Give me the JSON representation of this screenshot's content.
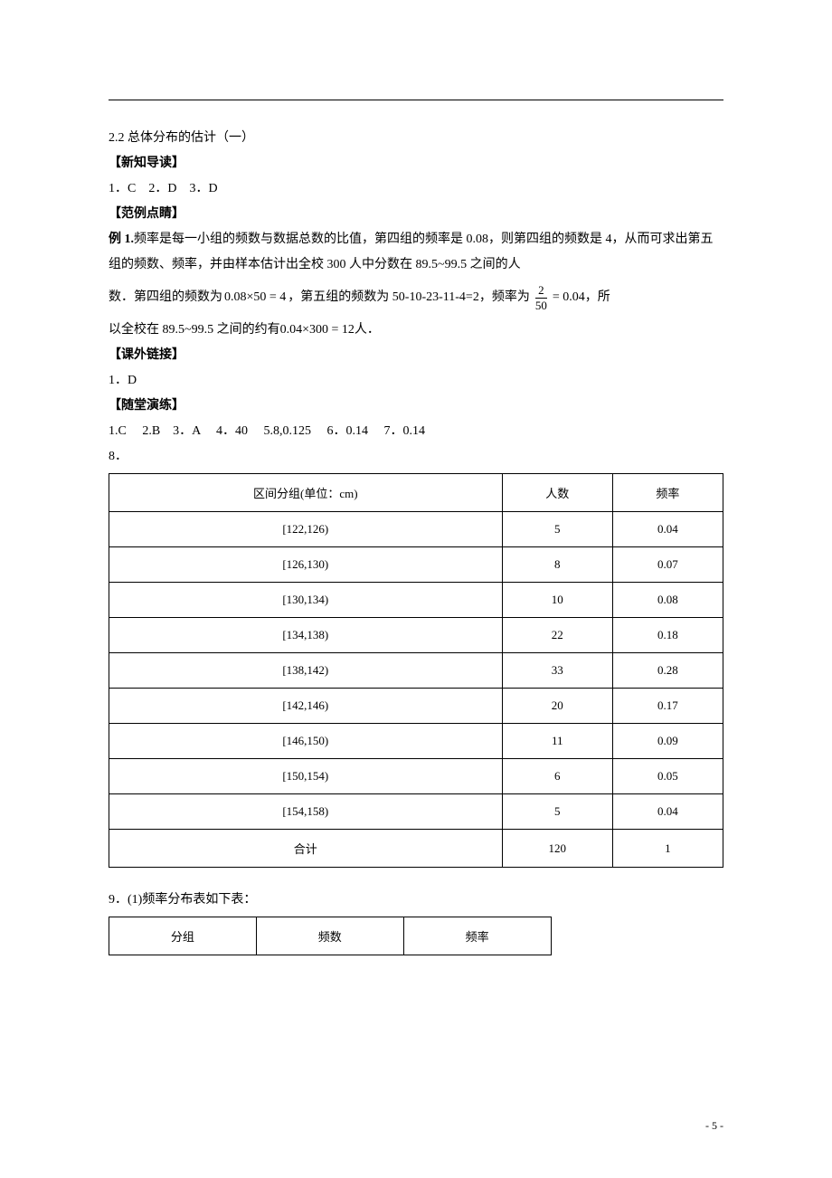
{
  "colors": {
    "text": "#000000",
    "background": "#ffffff",
    "border": "#000000"
  },
  "typography": {
    "body_font": "SimSun / 宋体",
    "body_size_pt": 10.5,
    "line_height": 2.0
  },
  "heading": "2.2 总体分布的估计（一）",
  "sections": {
    "xinzhi": {
      "title": "【新知导读】",
      "answers": "1．C　2．D　3．D"
    },
    "fanli": {
      "title": "【范例点睛】",
      "ex1_label": "例 1.",
      "ex1_p1": "频率是每一小组的频数与数据总数的比值，第四组的频率是 0.08，则第四组的频数是 4，从而可求出第五组的频数、频率，并由样本估计出全校 300 人中分数在 89.5~99.5 之间的人",
      "ex1_p2a": "数．第四组的频数为",
      "ex1_f1": "0.08×50 = 4",
      "ex1_p2b": "，第五组的频数为 50-10-23-11-4=2，频率为",
      "ex1_frac_num": "2",
      "ex1_frac_den": "50",
      "ex1_eq": "= 0.04",
      "ex1_p2c": "，所",
      "ex1_p3a": "以全校在 89.5~99.5 之间的约有",
      "ex1_f2": "0.04×300 = 12",
      "ex1_p3b": "人．"
    },
    "kewai": {
      "title": "【课外链接】",
      "answers": "1．D"
    },
    "suitang": {
      "title": "【随堂演练】",
      "answers": "1.C　 2.B　3．A　 4．40　 5.8,0.125　 6．0.14　 7．0.14",
      "q8": "8．",
      "q9": "9．(1)频率分布表如下表："
    }
  },
  "table1": {
    "columns": [
      "区间分组(单位：cm)",
      "人数",
      "频率"
    ],
    "col_widths_pct": [
      34,
      33,
      33
    ],
    "rows": [
      [
        "[122,126)",
        "5",
        "0.04"
      ],
      [
        "[126,130)",
        "8",
        "0.07"
      ],
      [
        "[130,134)",
        "10",
        "0.08"
      ],
      [
        "[134,138)",
        "22",
        "0.18"
      ],
      [
        "[138,142)",
        "33",
        "0.28"
      ],
      [
        "[142,146)",
        "20",
        "0.17"
      ],
      [
        "[146,150)",
        "11",
        "0.09"
      ],
      [
        "[150,154)",
        "6",
        "0.05"
      ],
      [
        "[154,158)",
        "5",
        "0.04"
      ],
      [
        "合计",
        "120",
        "1"
      ]
    ]
  },
  "table2": {
    "columns": [
      "分组",
      "频数",
      "频率"
    ],
    "col_widths_pct": [
      34,
      33,
      33
    ]
  },
  "page_number": "- 5 -"
}
